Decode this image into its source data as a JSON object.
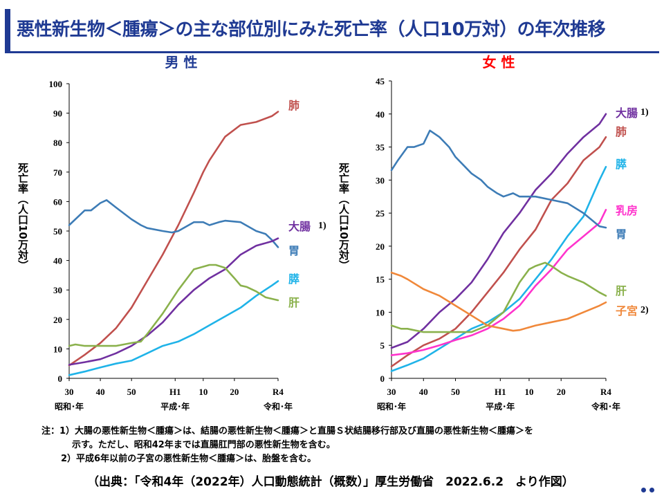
{
  "title": "悪性新生物＜腫瘍＞の主な部位別にみた死亡率（人口10万対）の年次推移",
  "notes": [
    "注：1）大腸の悪性新生物＜腫瘍＞は、結腸の悪性新生物＜腫瘍＞と直腸Ｓ状結腸移行部及び直腸の悪性新生物＜腫瘍＞を",
    "示す。ただし、昭和42年までは直腸肛門部の悪性新生物を含む。",
    "2）平成6年以前の子宮の悪性新生物＜腫瘍＞は、胎盤を含む。"
  ],
  "source": "（出典：「令和4年（2022年）人口動態統計（概数）」厚生労働省　2022.6.2　より作図）",
  "colors": {
    "header": "#1f3a93",
    "male_title": "#1f3a93",
    "female_title": "#ff0000",
    "lung": "#c0504d",
    "stomach": "#3d7cb6",
    "colon": "#7030a0",
    "pancreas": "#1fb3e8",
    "liver": "#8ab14c",
    "breast": "#ff33cc",
    "uterus": "#f0883a"
  },
  "chart_data": [
    {
      "type": "line",
      "title": "男 性",
      "ylabel": "死亡率（人口10万対）",
      "ylim": [
        0,
        100
      ],
      "yticks": [
        0,
        10,
        20,
        30,
        40,
        50,
        60,
        70,
        80,
        90,
        100
      ],
      "xlim": [
        1955,
        2022
      ],
      "xticks": [
        {
          "x": 1955,
          "label": "30"
        },
        {
          "x": 1965,
          "label": "40"
        },
        {
          "x": 1975,
          "label": "50"
        },
        {
          "x": 1989,
          "label": "H1"
        },
        {
          "x": 1998,
          "label": "10"
        },
        {
          "x": 2008,
          "label": "20"
        },
        {
          "x": 2022,
          "label": "R4"
        }
      ],
      "eras": [
        {
          "x": 1955,
          "label": "昭和･年"
        },
        {
          "x": 1989,
          "label": "平成･年"
        },
        {
          "x": 2022,
          "label": "令和･年"
        }
      ],
      "grid": false,
      "series": [
        {
          "name": "肺",
          "color": "#c0504d",
          "x": [
            1955,
            1960,
            1965,
            1970,
            1975,
            1980,
            1985,
            1990,
            1995,
            1998,
            2000,
            2005,
            2010,
            2015,
            2020,
            2022
          ],
          "y": [
            4.4,
            8,
            12,
            17,
            24,
            33,
            42,
            52,
            63,
            70,
            74,
            82,
            86,
            87,
            89,
            90.5
          ]
        },
        {
          "name": "胃",
          "color": "#3d7cb6",
          "x": [
            1955,
            1960,
            1962,
            1965,
            1967,
            1970,
            1975,
            1978,
            1980,
            1985,
            1988,
            1990,
            1995,
            1998,
            2000,
            2003,
            2005,
            2010,
            2015,
            2018,
            2020,
            2022
          ],
          "y": [
            52,
            57,
            57,
            59.5,
            60.5,
            58,
            54,
            52,
            51,
            50,
            49.5,
            50,
            53,
            53,
            52,
            53,
            53.5,
            53,
            50,
            49,
            47,
            44.5
          ]
        },
        {
          "name": "大腸",
          "sup": "1)",
          "color": "#7030a0",
          "x": [
            1955,
            1960,
            1965,
            1970,
            1975,
            1980,
            1985,
            1990,
            1995,
            2000,
            2005,
            2010,
            2015,
            2020,
            2022
          ],
          "y": [
            4.6,
            5.5,
            6.5,
            8.5,
            11,
            14.5,
            19,
            25,
            30,
            34,
            37,
            42,
            45,
            46.5,
            47.5
          ]
        },
        {
          "name": "膵",
          "color": "#1fb3e8",
          "x": [
            1955,
            1960,
            1965,
            1970,
            1975,
            1980,
            1985,
            1990,
            1995,
            2000,
            2005,
            2010,
            2015,
            2020,
            2022
          ],
          "y": [
            1.1,
            2.3,
            3.7,
            5,
            6,
            8.5,
            11,
            12.5,
            15,
            18,
            21,
            24,
            28,
            31.5,
            33
          ]
        },
        {
          "name": "肝",
          "color": "#8ab14c",
          "x": [
            1955,
            1957,
            1960,
            1965,
            1970,
            1975,
            1978,
            1980,
            1985,
            1990,
            1995,
            2000,
            2002,
            2005,
            2008,
            2010,
            2012,
            2015,
            2018,
            2020,
            2022
          ],
          "y": [
            11,
            11.5,
            11,
            11,
            11,
            12,
            12.5,
            15,
            22,
            30,
            37,
            38.5,
            38.5,
            37.5,
            34,
            31.5,
            31,
            29.5,
            27.5,
            27,
            26.5
          ]
        }
      ]
    },
    {
      "type": "line",
      "title": "女 性",
      "ylabel": "死亡率（人口10万対）",
      "ylim": [
        0,
        45
      ],
      "yticks": [
        0,
        5,
        10,
        15,
        20,
        25,
        30,
        35,
        40,
        45
      ],
      "xlim": [
        1955,
        2022
      ],
      "xticks": [
        {
          "x": 1955,
          "label": "30"
        },
        {
          "x": 1965,
          "label": "40"
        },
        {
          "x": 1975,
          "label": "50"
        },
        {
          "x": 1989,
          "label": "H1"
        },
        {
          "x": 1998,
          "label": "10"
        },
        {
          "x": 2008,
          "label": "20"
        },
        {
          "x": 2022,
          "label": "R4"
        }
      ],
      "eras": [
        {
          "x": 1955,
          "label": "昭和･年"
        },
        {
          "x": 1989,
          "label": "平成･年"
        },
        {
          "x": 2022,
          "label": "令和･年"
        }
      ],
      "grid": false,
      "series": [
        {
          "name": "大腸",
          "sup": "1)",
          "color": "#7030a0",
          "x": [
            1955,
            1960,
            1965,
            1970,
            1975,
            1980,
            1985,
            1990,
            1995,
            2000,
            2005,
            2010,
            2015,
            2020,
            2022
          ],
          "y": [
            4.6,
            5.5,
            7.5,
            10,
            12,
            14.5,
            18,
            22,
            25,
            28.5,
            31,
            34,
            36.5,
            38.5,
            40
          ]
        },
        {
          "name": "肺",
          "color": "#c0504d",
          "x": [
            1955,
            1960,
            1965,
            1970,
            1975,
            1980,
            1985,
            1990,
            1995,
            2000,
            2005,
            2010,
            2015,
            2020,
            2022
          ],
          "y": [
            1.8,
            3.5,
            5,
            6,
            7.5,
            10,
            13,
            16,
            19.5,
            22.5,
            27,
            29.5,
            33,
            35,
            36.5
          ]
        },
        {
          "name": "膵",
          "color": "#1fb3e8",
          "x": [
            1955,
            1960,
            1965,
            1970,
            1975,
            1980,
            1985,
            1990,
            1995,
            2000,
            2005,
            2010,
            2015,
            2020,
            2022
          ],
          "y": [
            1.1,
            2,
            3,
            4.5,
            6,
            7.5,
            8.5,
            10,
            12,
            15,
            18,
            21.5,
            24.5,
            30,
            32
          ]
        },
        {
          "name": "乳房",
          "color": "#ff33cc",
          "x": [
            1955,
            1960,
            1965,
            1970,
            1975,
            1980,
            1985,
            1990,
            1995,
            2000,
            2005,
            2010,
            2015,
            2020,
            2022
          ],
          "y": [
            3.5,
            3.8,
            4.3,
            5,
            5.8,
            6.5,
            7.5,
            9,
            11,
            14,
            16.5,
            19.5,
            21.5,
            23.5,
            25.5
          ]
        },
        {
          "name": "胃",
          "color": "#3d7cb6",
          "x": [
            1955,
            1957,
            1960,
            1962,
            1965,
            1967,
            1970,
            1973,
            1975,
            1978,
            1980,
            1983,
            1985,
            1988,
            1990,
            1993,
            1995,
            1998,
            2000,
            2005,
            2010,
            2015,
            2020,
            2022
          ],
          "y": [
            31.5,
            33,
            35,
            35,
            35.5,
            37.5,
            36.5,
            35,
            33.5,
            32,
            31,
            30,
            29,
            28,
            27.5,
            28,
            27.5,
            27.5,
            27.5,
            27,
            26.5,
            25,
            23,
            22.8
          ]
        },
        {
          "name": "肝",
          "color": "#8ab14c",
          "x": [
            1955,
            1958,
            1960,
            1965,
            1970,
            1975,
            1980,
            1985,
            1990,
            1995,
            1998,
            2000,
            2003,
            2005,
            2008,
            2010,
            2015,
            2020,
            2022
          ],
          "y": [
            8,
            7.5,
            7.5,
            7,
            7,
            7,
            7,
            8,
            10,
            14.5,
            16.5,
            17,
            17.5,
            17,
            16,
            15.5,
            14.5,
            13,
            12.5
          ]
        },
        {
          "name": "子宮",
          "sup": "2)",
          "color": "#f0883a",
          "x": [
            1955,
            1958,
            1960,
            1965,
            1970,
            1975,
            1980,
            1985,
            1990,
            1993,
            1995,
            2000,
            2005,
            2010,
            2015,
            2020,
            2022
          ],
          "y": [
            16,
            15.5,
            15,
            13.5,
            12.5,
            11,
            9.5,
            8,
            7.5,
            7.2,
            7.3,
            8,
            8.5,
            9,
            10,
            11,
            11.5
          ]
        }
      ]
    }
  ]
}
